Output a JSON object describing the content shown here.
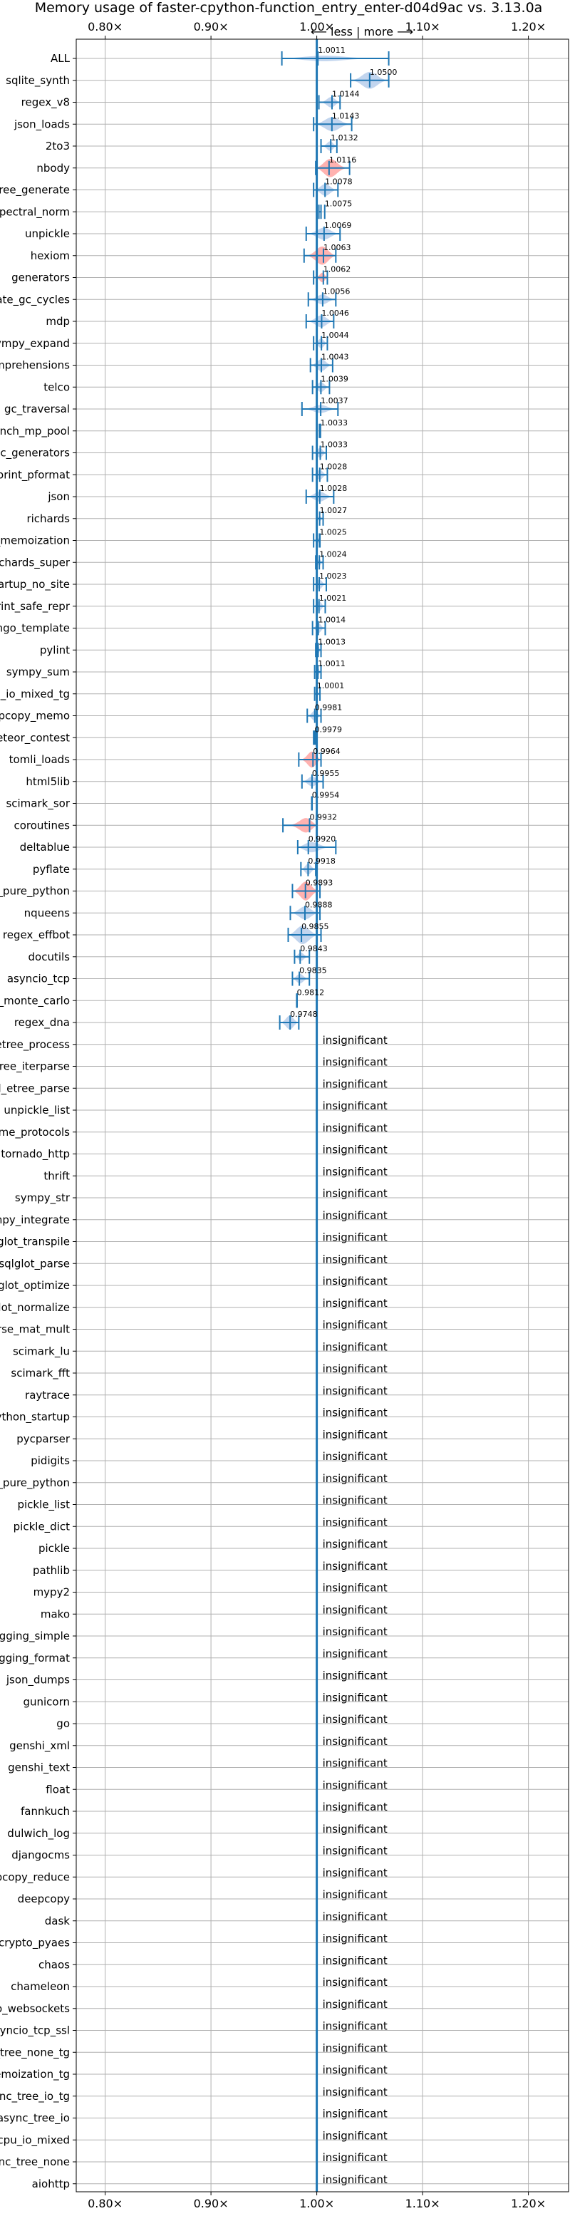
{
  "chart_data": {
    "type": "violin",
    "title": "Memory usage of faster-cpython-function_entry_enter-d04d9ac vs. 3.13.0a",
    "direction_label": "⟵ less | more ⟶",
    "xlim": [
      0.75,
      1.25
    ],
    "xticks": [
      0.8,
      0.9,
      1.0,
      1.1,
      1.2
    ],
    "xtick_labels": [
      "0.80×",
      "0.90×",
      "1.00×",
      "1.10×",
      "1.20×"
    ],
    "reference_x": 1.0,
    "grid": true,
    "colors": {
      "line": "#1f77b4",
      "faster": "#aec7e8",
      "slower": "#ff9896",
      "grid": "#b0b0b0"
    },
    "insignificant_label": "insignificant",
    "benchmarks": [
      {
        "name": "ALL",
        "value": 1.0011,
        "label": "1.0011",
        "min": 0.967,
        "max": 1.068,
        "width": 0.3,
        "color": "faster"
      },
      {
        "name": "sqlite_synth",
        "value": 1.05,
        "label": "1.0500",
        "min": 1.032,
        "max": 1.068,
        "width": 0.85,
        "color": "faster"
      },
      {
        "name": "regex_v8",
        "value": 1.0144,
        "label": "1.0144",
        "min": 1.002,
        "max": 1.022,
        "width": 0.55,
        "color": "faster"
      },
      {
        "name": "json_loads",
        "value": 1.0143,
        "label": "1.0143",
        "min": 0.997,
        "max": 1.033,
        "width": 0.7,
        "color": "faster"
      },
      {
        "name": "2to3",
        "value": 1.0132,
        "label": "1.0132",
        "min": 1.004,
        "max": 1.019,
        "width": 0.5,
        "color": "faster"
      },
      {
        "name": "nbody",
        "value": 1.0116,
        "label": "1.0116",
        "min": 0.999,
        "max": 1.031,
        "width": 0.95,
        "color": "slower"
      },
      {
        "name": "xml_etree_generate",
        "value": 1.0078,
        "label": "1.0078",
        "min": 0.997,
        "max": 1.02,
        "width": 0.6,
        "color": "faster"
      },
      {
        "name": "spectral_norm",
        "value": 1.0075,
        "label": "1.0075",
        "min": 1.002,
        "max": 1.004,
        "width": 0.15,
        "color": "faster"
      },
      {
        "name": "unpickle",
        "value": 1.0069,
        "label": "1.0069",
        "min": 0.99,
        "max": 1.022,
        "width": 0.6,
        "color": "faster"
      },
      {
        "name": "hexiom",
        "value": 1.0063,
        "label": "1.0063",
        "min": 0.988,
        "max": 1.018,
        "width": 0.95,
        "color": "slower"
      },
      {
        "name": "generators",
        "value": 1.0062,
        "label": "1.0062",
        "min": 0.997,
        "max": 1.01,
        "width": 0.55,
        "color": "slower"
      },
      {
        "name": "create_gc_cycles",
        "value": 1.0056,
        "label": "1.0056",
        "min": 0.992,
        "max": 1.018,
        "width": 0.5,
        "color": "faster"
      },
      {
        "name": "mdp",
        "value": 1.0046,
        "label": "1.0046",
        "min": 0.99,
        "max": 1.016,
        "width": 0.6,
        "color": "faster"
      },
      {
        "name": "sympy_expand",
        "value": 1.0044,
        "label": "1.0044",
        "min": 0.997,
        "max": 1.01,
        "width": 0.5,
        "color": "faster"
      },
      {
        "name": "comprehensions",
        "value": 1.0043,
        "label": "1.0043",
        "min": 0.994,
        "max": 1.015,
        "width": 0.6,
        "color": "faster"
      },
      {
        "name": "telco",
        "value": 1.0039,
        "label": "1.0039",
        "min": 0.996,
        "max": 1.012,
        "width": 0.5,
        "color": "faster"
      },
      {
        "name": "gc_traversal",
        "value": 1.0037,
        "label": "1.0037",
        "min": 0.986,
        "max": 1.02,
        "width": 0.4,
        "color": "faster"
      },
      {
        "name": "bench_mp_pool",
        "value": 1.0033,
        "label": "1.0033",
        "min": 1.0025,
        "max": 1.0035,
        "width": 0.1,
        "color": "faster"
      },
      {
        "name": "async_generators",
        "value": 1.0033,
        "label": "1.0033",
        "min": 0.996,
        "max": 1.009,
        "width": 0.5,
        "color": "faster"
      },
      {
        "name": "pprint_pformat",
        "value": 1.0028,
        "label": "1.0028",
        "min": 0.996,
        "max": 1.01,
        "width": 0.5,
        "color": "faster"
      },
      {
        "name": "json",
        "value": 1.0028,
        "label": "1.0028",
        "min": 0.99,
        "max": 1.016,
        "width": 0.5,
        "color": "faster"
      },
      {
        "name": "richards",
        "value": 1.0027,
        "label": "1.0027",
        "min": 1.0,
        "max": 1.006,
        "width": 0.3,
        "color": "faster"
      },
      {
        "name": "async_tree_memoization",
        "value": 1.0025,
        "label": "1.0025",
        "min": 0.997,
        "max": 1.003,
        "width": 0.4,
        "color": "faster"
      },
      {
        "name": "richards_super",
        "value": 1.0024,
        "label": "1.0024",
        "min": 0.999,
        "max": 1.006,
        "width": 0.35,
        "color": "faster"
      },
      {
        "name": "python_startup_no_site",
        "value": 1.0023,
        "label": "1.0023",
        "min": 0.997,
        "max": 1.009,
        "width": 0.5,
        "color": "faster"
      },
      {
        "name": "pprint_safe_repr",
        "value": 1.0021,
        "label": "1.0021",
        "min": 0.997,
        "max": 1.008,
        "width": 0.5,
        "color": "faster"
      },
      {
        "name": "django_template",
        "value": 1.0014,
        "label": "1.0014",
        "min": 0.996,
        "max": 1.008,
        "width": 0.5,
        "color": "faster"
      },
      {
        "name": "pylint",
        "value": 1.0013,
        "label": "1.0013",
        "min": 0.999,
        "max": 1.004,
        "width": 0.4,
        "color": "faster"
      },
      {
        "name": "sympy_sum",
        "value": 1.0011,
        "label": "1.0011",
        "min": 0.998,
        "max": 1.004,
        "width": 0.4,
        "color": "faster"
      },
      {
        "name": "async_tree_cpu_io_mixed_tg",
        "value": 1.0001,
        "label": "1.0001",
        "min": 0.998,
        "max": 1.003,
        "width": 0.3,
        "color": "faster"
      },
      {
        "name": "deepcopy_memo",
        "value": 0.9981,
        "label": "0.9981",
        "min": 0.991,
        "max": 1.004,
        "width": 0.5,
        "color": "faster"
      },
      {
        "name": "meteor_contest",
        "value": 0.9979,
        "label": "0.9979",
        "min": 0.997,
        "max": 0.999,
        "width": 0.35,
        "color": "faster"
      },
      {
        "name": "tomli_loads",
        "value": 0.9964,
        "label": "0.9964",
        "min": 0.983,
        "max": 1.004,
        "width": 0.85,
        "color": "slower"
      },
      {
        "name": "html5lib",
        "value": 0.9955,
        "label": "0.9955",
        "min": 0.986,
        "max": 1.006,
        "width": 0.5,
        "color": "faster"
      },
      {
        "name": "scimark_sor",
        "value": 0.9954,
        "label": "0.9954",
        "min": 0.9952,
        "max": 0.9956,
        "width": 0.05,
        "color": "faster"
      },
      {
        "name": "coroutines",
        "value": 0.9932,
        "label": "0.9932",
        "min": 0.968,
        "max": 1.0,
        "width": 0.95,
        "color": "slower"
      },
      {
        "name": "deltablue",
        "value": 0.992,
        "label": "0.9920",
        "min": 0.982,
        "max": 1.018,
        "width": 0.6,
        "color": "faster"
      },
      {
        "name": "pyflate",
        "value": 0.9918,
        "label": "0.9918",
        "min": 0.985,
        "max": 0.999,
        "width": 0.55,
        "color": "faster"
      },
      {
        "name": "unpickle_pure_python",
        "value": 0.9893,
        "label": "0.9893",
        "min": 0.977,
        "max": 1.003,
        "width": 0.95,
        "color": "slower"
      },
      {
        "name": "nqueens",
        "value": 0.9888,
        "label": "0.9888",
        "min": 0.975,
        "max": 1.003,
        "width": 0.65,
        "color": "faster"
      },
      {
        "name": "regex_effbot",
        "value": 0.9855,
        "label": "0.9855",
        "min": 0.973,
        "max": 1.004,
        "width": 0.95,
        "color": "faster"
      },
      {
        "name": "docutils",
        "value": 0.9843,
        "label": "0.9843",
        "min": 0.979,
        "max": 0.993,
        "width": 0.45,
        "color": "faster"
      },
      {
        "name": "asyncio_tcp",
        "value": 0.9835,
        "label": "0.9835",
        "min": 0.977,
        "max": 0.993,
        "width": 0.5,
        "color": "faster"
      },
      {
        "name": "scimark_monte_carlo",
        "value": 0.9812,
        "label": "0.9812",
        "min": 0.981,
        "max": 0.9814,
        "width": 0.05,
        "color": "faster"
      },
      {
        "name": "regex_dna",
        "value": 0.9748,
        "label": "0.9748",
        "min": 0.965,
        "max": 0.983,
        "width": 0.7,
        "color": "faster"
      },
      {
        "name": "xml_etree_process",
        "insignificant": true
      },
      {
        "name": "xml_etree_iterparse",
        "insignificant": true
      },
      {
        "name": "xml_etree_parse",
        "insignificant": true
      },
      {
        "name": "unpickle_list",
        "insignificant": true
      },
      {
        "name": "typing_runtime_protocols",
        "insignificant": true
      },
      {
        "name": "tornado_http",
        "insignificant": true
      },
      {
        "name": "thrift",
        "insignificant": true
      },
      {
        "name": "sympy_str",
        "insignificant": true
      },
      {
        "name": "sympy_integrate",
        "insignificant": true
      },
      {
        "name": "sqlglot_transpile",
        "insignificant": true
      },
      {
        "name": "sqlglot_parse",
        "insignificant": true
      },
      {
        "name": "sqlglot_optimize",
        "insignificant": true
      },
      {
        "name": "sqlglot_normalize",
        "insignificant": true
      },
      {
        "name": "scimark_sparse_mat_mult",
        "insignificant": true
      },
      {
        "name": "scimark_lu",
        "insignificant": true
      },
      {
        "name": "scimark_fft",
        "insignificant": true
      },
      {
        "name": "raytrace",
        "insignificant": true
      },
      {
        "name": "python_startup",
        "insignificant": true
      },
      {
        "name": "pycparser",
        "insignificant": true
      },
      {
        "name": "pidigits",
        "insignificant": true
      },
      {
        "name": "pickle_pure_python",
        "insignificant": true
      },
      {
        "name": "pickle_list",
        "insignificant": true
      },
      {
        "name": "pickle_dict",
        "insignificant": true
      },
      {
        "name": "pickle",
        "insignificant": true
      },
      {
        "name": "pathlib",
        "insignificant": true
      },
      {
        "name": "mypy2",
        "insignificant": true
      },
      {
        "name": "mako",
        "insignificant": true
      },
      {
        "name": "logging_simple",
        "insignificant": true
      },
      {
        "name": "logging_format",
        "insignificant": true
      },
      {
        "name": "json_dumps",
        "insignificant": true
      },
      {
        "name": "gunicorn",
        "insignificant": true
      },
      {
        "name": "go",
        "insignificant": true
      },
      {
        "name": "genshi_xml",
        "insignificant": true
      },
      {
        "name": "genshi_text",
        "insignificant": true
      },
      {
        "name": "float",
        "insignificant": true
      },
      {
        "name": "fannkuch",
        "insignificant": true
      },
      {
        "name": "dulwich_log",
        "insignificant": true
      },
      {
        "name": "djangocms",
        "insignificant": true
      },
      {
        "name": "deepcopy_reduce",
        "insignificant": true
      },
      {
        "name": "deepcopy",
        "insignificant": true
      },
      {
        "name": "dask",
        "insignificant": true
      },
      {
        "name": "crypto_pyaes",
        "insignificant": true
      },
      {
        "name": "chaos",
        "insignificant": true
      },
      {
        "name": "chameleon",
        "insignificant": true
      },
      {
        "name": "asyncio_websockets",
        "insignificant": true
      },
      {
        "name": "asyncio_tcp_ssl",
        "insignificant": true
      },
      {
        "name": "async_tree_none_tg",
        "insignificant": true
      },
      {
        "name": "async_tree_memoization_tg",
        "insignificant": true
      },
      {
        "name": "async_tree_io_tg",
        "insignificant": true
      },
      {
        "name": "async_tree_io",
        "insignificant": true
      },
      {
        "name": "async_tree_cpu_io_mixed",
        "insignificant": true
      },
      {
        "name": "async_tree_none",
        "insignificant": true
      },
      {
        "name": "aiohttp",
        "insignificant": true
      }
    ]
  }
}
